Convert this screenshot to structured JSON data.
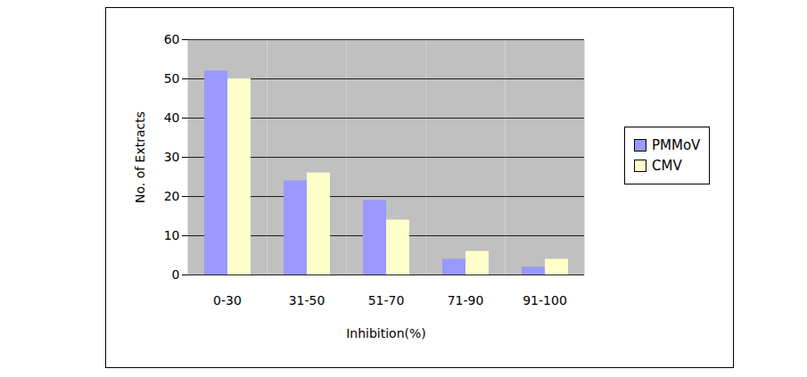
{
  "chart_data": {
    "type": "bar",
    "categories": [
      "0-30",
      "31-50",
      "51-70",
      "71-90",
      "91-100"
    ],
    "series": [
      {
        "name": "PMMoV",
        "color": "#9999ff",
        "values": [
          52,
          24,
          19,
          4,
          2
        ]
      },
      {
        "name": "CMV",
        "color": "#ffffcc",
        "values": [
          50,
          26,
          14,
          6,
          4
        ]
      }
    ],
    "x_label": "Inhibition(%)",
    "y_label": "No. of Extracts",
    "ylim": [
      0,
      60
    ],
    "yticks": [
      0,
      10,
      20,
      30,
      40,
      50,
      60
    ],
    "grid": true,
    "legend": "right"
  }
}
